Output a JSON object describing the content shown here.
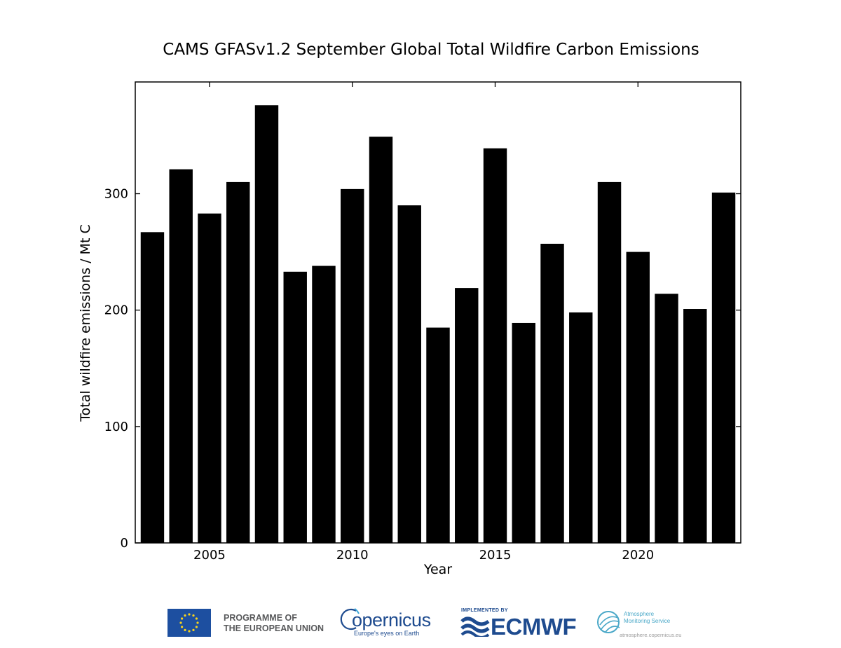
{
  "chart_data": {
    "type": "bar",
    "title": "CAMS GFASv1.2 September Global Total Wildfire Carbon Emissions",
    "xlabel": "Year",
    "ylabel": "Total wildfire emissions / Mt C",
    "x": [
      2003,
      2004,
      2005,
      2006,
      2007,
      2008,
      2009,
      2010,
      2011,
      2012,
      2013,
      2014,
      2015,
      2016,
      2017,
      2018,
      2019,
      2020,
      2021,
      2022,
      2023
    ],
    "values": [
      267,
      321,
      283,
      310,
      376,
      233,
      238,
      304,
      349,
      290,
      185,
      219,
      339,
      189,
      257,
      198,
      310,
      250,
      214,
      201,
      301
    ],
    "xlim": [
      2002.4,
      2023.6
    ],
    "ylim": [
      0,
      396
    ],
    "xticks": [
      2005,
      2010,
      2015,
      2020
    ],
    "xtick_labels": [
      "2005",
      "2010",
      "2015",
      "2020"
    ],
    "yticks": [
      0,
      100,
      200,
      300
    ],
    "ytick_labels": [
      "0",
      "100",
      "200",
      "300"
    ],
    "grid": false,
    "bar_color": "#000000"
  },
  "footer": {
    "eu_line1": "PROGRAMME OF",
    "eu_line2": "THE EUROPEAN UNION",
    "copernicus": "opernicus",
    "copernicus_tagline": "Europe's eyes on Earth",
    "implemented_by": "IMPLEMENTED BY",
    "ecmwf": "ECMWF",
    "ams_line1": "Atmosphere",
    "ams_line2": "Monitoring Service",
    "ams_url": "atmosphere.copernicus.eu",
    "brand_color": "#1e4b8f",
    "ams_color": "#4aa8c8"
  }
}
